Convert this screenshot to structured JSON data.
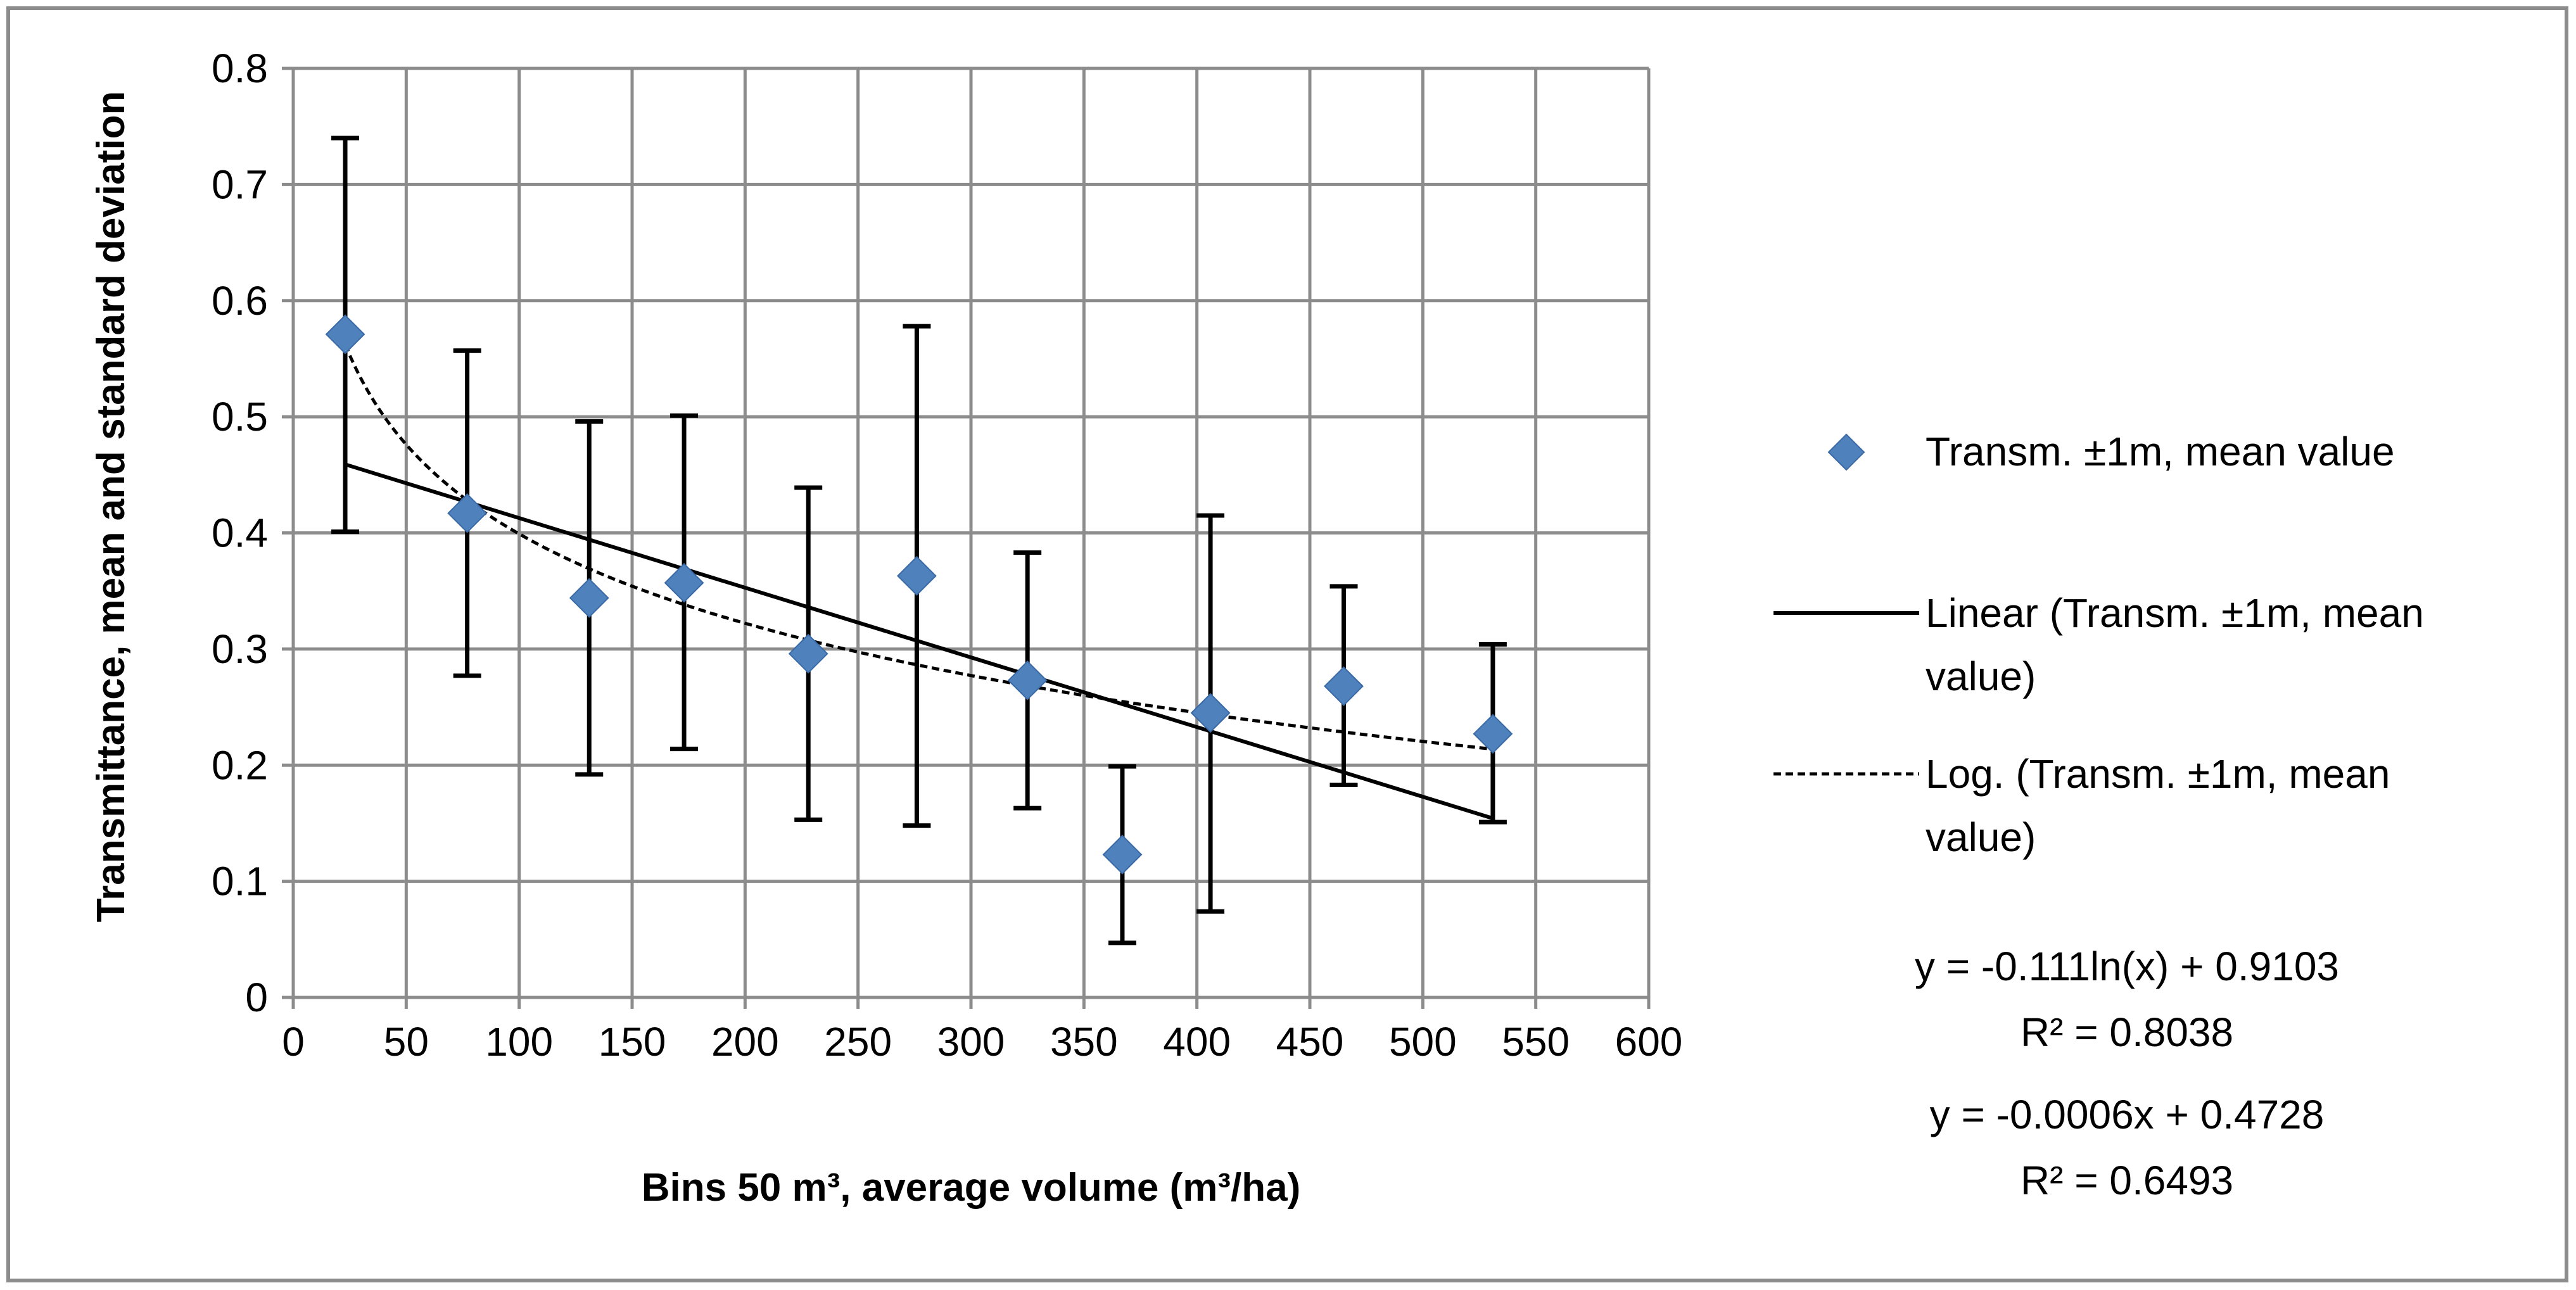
{
  "chart_data": {
    "type": "scatter",
    "xlabel": "Bins 50 m³, average volume (m³/ha)",
    "ylabel": "Transmittance, mean and standard deviation",
    "xlim": [
      0,
      600
    ],
    "ylim": [
      0,
      0.8
    ],
    "x_ticks": [
      0,
      50,
      100,
      150,
      200,
      250,
      300,
      350,
      400,
      450,
      500,
      550,
      600
    ],
    "y_ticks": [
      0,
      0.1,
      0.2,
      0.3,
      0.4,
      0.5,
      0.6,
      0.7,
      0.8
    ],
    "x_tick_labels": [
      "0",
      "50",
      "100",
      "150",
      "200",
      "250",
      "300",
      "350",
      "400",
      "450",
      "500",
      "550",
      "600"
    ],
    "y_tick_labels": [
      "0",
      "0.1",
      "0.2",
      "0.3",
      "0.4",
      "0.5",
      "0.6",
      "0.7",
      "0.8"
    ],
    "grid": true,
    "legend_position": "right",
    "series": [
      {
        "name": "Transm. ±1m, mean value",
        "marker": "diamond",
        "color": "#4f81bd",
        "points": [
          {
            "x": 23,
            "y": 0.571,
            "err_low": 0.401,
            "err_high": 0.74
          },
          {
            "x": 77,
            "y": 0.417,
            "err_low": 0.277,
            "err_high": 0.557
          },
          {
            "x": 131,
            "y": 0.344,
            "err_low": 0.192,
            "err_high": 0.496
          },
          {
            "x": 173,
            "y": 0.357,
            "err_low": 0.214,
            "err_high": 0.501
          },
          {
            "x": 228,
            "y": 0.296,
            "err_low": 0.153,
            "err_high": 0.439
          },
          {
            "x": 276,
            "y": 0.363,
            "err_low": 0.148,
            "err_high": 0.578
          },
          {
            "x": 325,
            "y": 0.273,
            "err_low": 0.163,
            "err_high": 0.383
          },
          {
            "x": 367,
            "y": 0.123,
            "err_low": 0.047,
            "err_high": 0.199
          },
          {
            "x": 406,
            "y": 0.245,
            "err_low": 0.074,
            "err_high": 0.415
          },
          {
            "x": 465,
            "y": 0.268,
            "err_low": 0.183,
            "err_high": 0.354
          },
          {
            "x": 531,
            "y": 0.227,
            "err_low": 0.151,
            "err_high": 0.304
          }
        ]
      },
      {
        "name": "Linear (Transm. ±1m, mean value)",
        "type": "trendline-linear",
        "slope": -0.0006,
        "intercept": 0.4728,
        "x_range": [
          23,
          531
        ],
        "color": "#000000"
      },
      {
        "name": "Log. (Transm. ±1m, mean value)",
        "type": "trendline-log",
        "a": -0.111,
        "b": 0.9103,
        "x_range": [
          23,
          531
        ],
        "color": "#000000"
      }
    ],
    "legend": {
      "scatter_label_lines": [
        "Transm. ±1m, mean value"
      ],
      "linear_label_lines": [
        "Linear (Transm. ±1m, mean",
        "value)"
      ],
      "log_label_lines": [
        "Log. (Transm. ±1m, mean",
        "value)"
      ]
    },
    "annotations": {
      "log_equation": "y = -0.111ln(x) + 0.9103",
      "log_r2": "R² = 0.8038",
      "linear_equation": "y = -0.0006x + 0.4728",
      "linear_r2": "R² = 0.6493"
    }
  }
}
